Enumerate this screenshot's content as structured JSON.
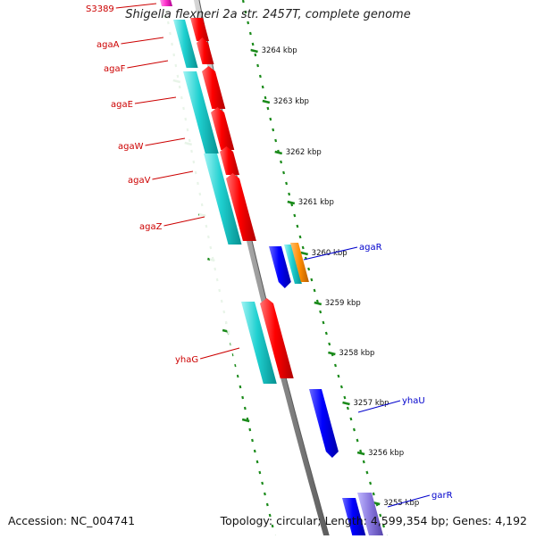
{
  "title": "Shigella flexneri 2a str. 2457T, complete genome",
  "footer": {
    "accession": "Accession: NC_004741",
    "summary": "Topology: circular; Length: 4,599,354 bp; Genes: 4,192"
  },
  "colors": {
    "backbone": "#7f7f7f",
    "ruler": "#1a8a1a",
    "forward_gene": "#ff0000",
    "reverse_gene": "#0000ff",
    "cds_cyan": "#16c8c8",
    "orange_feature": "#ff8c00",
    "lavender_feature": "#8877dd",
    "magenta_feature": "#ff33cc",
    "forward_label": "#cc0000",
    "reverse_label": "#0000cc"
  },
  "ruler_labels": [
    "3264 kbp",
    "3263 kbp",
    "3262 kbp",
    "3261 kbp",
    "3260 kbp",
    "3259 kbp",
    "3258 kbp",
    "3257 kbp",
    "3256 kbp",
    "3255 kbp"
  ],
  "gene_labels": {
    "left": [
      "S3389",
      "agaA",
      "agaF",
      "agaE",
      "agaW",
      "agaV",
      "agaZ",
      "yhaG"
    ],
    "right": [
      "agaR",
      "yhaU",
      "garR"
    ]
  }
}
